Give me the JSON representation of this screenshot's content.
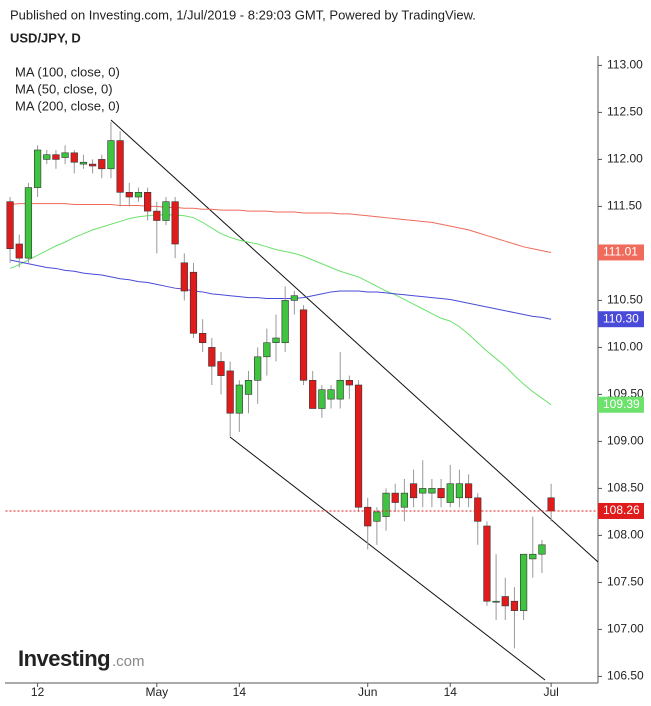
{
  "chart_data": {
    "type": "candlestick",
    "header": "Published on Investing.com, 1/Jul/2019 - 8:29:03 GMT, Powered by TradingView.",
    "title": "USD/JPY, D",
    "logo": {
      "brand": "Investing",
      "suffix": ".com"
    },
    "categories": [
      null,
      null,
      null,
      "12",
      null,
      null,
      null,
      null,
      null,
      null,
      null,
      null,
      null,
      null,
      null,
      null,
      "May",
      null,
      null,
      null,
      null,
      null,
      null,
      null,
      null,
      "14",
      null,
      null,
      null,
      null,
      null,
      null,
      null,
      null,
      null,
      null,
      null,
      null,
      null,
      "Jun",
      null,
      null,
      null,
      null,
      null,
      null,
      null,
      null,
      "14",
      null,
      null,
      null,
      null,
      null,
      null,
      null,
      null,
      null,
      null,
      "Jul"
    ],
    "open": [
      111.55,
      111.1,
      110.95,
      111.7,
      112.0,
      112.05,
      112.02,
      112.07,
      111.95,
      111.95,
      112.0,
      111.9,
      112.2,
      111.65,
      111.6,
      111.65,
      111.45,
      111.35,
      111.55,
      110.9,
      110.8,
      110.15,
      110.0,
      109.85,
      109.75,
      109.3,
      109.5,
      109.65,
      109.9,
      110.05,
      110.05,
      110.5,
      110.4,
      109.65,
      109.35,
      109.45,
      109.45,
      109.65,
      109.6,
      108.3,
      108.15,
      108.2,
      108.45,
      108.3,
      108.55,
      108.45,
      108.45,
      108.5,
      108.35,
      108.4,
      108.55,
      108.4,
      108.1,
      107.3,
      107.35,
      107.3,
      107.2,
      107.75,
      107.8,
      108.4
    ],
    "high": [
      111.6,
      111.2,
      111.75,
      112.15,
      112.1,
      112.1,
      112.15,
      112.1,
      112.05,
      112.0,
      112.05,
      112.4,
      112.3,
      111.75,
      111.7,
      111.7,
      111.55,
      111.6,
      111.6,
      111.0,
      110.9,
      110.3,
      110.1,
      109.95,
      109.85,
      109.65,
      109.75,
      110.0,
      110.2,
      110.35,
      110.65,
      110.6,
      110.45,
      109.75,
      109.6,
      109.6,
      109.95,
      109.7,
      109.65,
      108.4,
      108.3,
      108.5,
      108.55,
      108.6,
      108.7,
      108.8,
      108.6,
      108.6,
      108.75,
      108.7,
      108.65,
      108.45,
      108.15,
      107.8,
      107.55,
      107.45,
      107.8,
      108.2,
      107.95,
      108.55
    ],
    "low": [
      110.9,
      110.85,
      110.9,
      111.6,
      111.95,
      111.9,
      111.95,
      111.85,
      111.9,
      111.85,
      111.8,
      111.8,
      111.5,
      111.5,
      111.55,
      111.35,
      111.0,
      111.3,
      110.95,
      110.5,
      110.1,
      109.95,
      109.6,
      109.5,
      109.05,
      109.1,
      109.3,
      109.4,
      109.7,
      109.85,
      109.95,
      110.35,
      109.6,
      109.35,
      109.25,
      109.35,
      109.35,
      109.45,
      108.25,
      107.85,
      107.9,
      108.05,
      108.25,
      108.15,
      108.3,
      108.3,
      108.3,
      108.3,
      108.3,
      108.3,
      108.3,
      107.9,
      107.25,
      107.1,
      107.1,
      106.8,
      107.1,
      107.55,
      107.6,
      108.15
    ],
    "close": [
      111.05,
      110.95,
      111.7,
      112.1,
      112.05,
      112.0,
      112.07,
      111.97,
      111.97,
      111.93,
      111.9,
      112.2,
      111.65,
      111.6,
      111.65,
      111.45,
      111.35,
      111.55,
      111.1,
      110.6,
      110.15,
      110.05,
      109.8,
      109.7,
      109.3,
      109.6,
      109.65,
      109.9,
      110.05,
      110.1,
      110.5,
      110.55,
      109.65,
      109.35,
      109.55,
      109.55,
      109.65,
      109.6,
      108.3,
      108.1,
      108.25,
      108.45,
      108.35,
      108.45,
      108.4,
      108.5,
      108.5,
      108.4,
      108.55,
      108.55,
      108.4,
      108.15,
      107.3,
      107.3,
      107.25,
      107.2,
      107.8,
      107.8,
      107.9,
      108.26
    ],
    "up_color": "#3ec43e",
    "down_color": "#e01b1b",
    "series": [
      {
        "name": "MA (100, close, 0)",
        "color": "#f06b5c",
        "last_label": "111.01",
        "values": [
          111.52,
          111.53,
          111.53,
          111.53,
          111.53,
          111.53,
          111.53,
          111.52,
          111.52,
          111.52,
          111.52,
          111.52,
          111.51,
          111.51,
          111.51,
          111.5,
          111.5,
          111.49,
          111.49,
          111.48,
          111.48,
          111.47,
          111.47,
          111.46,
          111.46,
          111.46,
          111.45,
          111.45,
          111.45,
          111.44,
          111.44,
          111.44,
          111.43,
          111.43,
          111.43,
          111.43,
          111.42,
          111.42,
          111.41,
          111.4,
          111.39,
          111.38,
          111.37,
          111.36,
          111.35,
          111.34,
          111.33,
          111.31,
          111.29,
          111.27,
          111.25,
          111.22,
          111.19,
          111.16,
          111.13,
          111.1,
          111.07,
          111.05,
          111.03,
          111.01
        ]
      },
      {
        "name": "MA (50, close, 0)",
        "color": "#6ce26c",
        "last_label": "109.39",
        "values": [
          110.84,
          110.88,
          110.93,
          110.98,
          111.03,
          111.08,
          111.12,
          111.17,
          111.21,
          111.25,
          111.28,
          111.31,
          111.34,
          111.37,
          111.39,
          111.4,
          111.41,
          111.41,
          111.41,
          111.4,
          111.38,
          111.33,
          111.27,
          111.21,
          111.17,
          111.14,
          111.12,
          111.1,
          111.07,
          111.04,
          111.02,
          111.0,
          110.97,
          110.93,
          110.89,
          110.85,
          110.81,
          110.78,
          110.75,
          110.7,
          110.65,
          110.6,
          110.56,
          110.51,
          110.46,
          110.41,
          110.36,
          110.31,
          110.28,
          110.22,
          110.14,
          110.05,
          109.96,
          109.88,
          109.8,
          109.7,
          109.61,
          109.53,
          109.46,
          109.39
        ]
      },
      {
        "name": "MA (200, close, 0)",
        "color": "#4a4ad8",
        "last_label": "110.30",
        "values": [
          110.93,
          110.91,
          110.89,
          110.87,
          110.85,
          110.84,
          110.82,
          110.81,
          110.79,
          110.78,
          110.77,
          110.75,
          110.73,
          110.72,
          110.7,
          110.69,
          110.67,
          110.65,
          110.63,
          110.62,
          110.6,
          110.59,
          110.57,
          110.56,
          110.55,
          110.54,
          110.53,
          110.53,
          110.52,
          110.52,
          110.52,
          110.52,
          110.53,
          110.55,
          110.57,
          110.59,
          110.6,
          110.6,
          110.6,
          110.59,
          110.59,
          110.58,
          110.57,
          110.56,
          110.55,
          110.54,
          110.53,
          110.52,
          110.51,
          110.49,
          110.47,
          110.45,
          110.43,
          110.41,
          110.39,
          110.37,
          110.35,
          110.33,
          110.32,
          110.3
        ]
      }
    ],
    "last_price": {
      "value": 108.26,
      "label": "108.26",
      "color": "#e01b1b"
    },
    "ylim": [
      106.43,
      113.1
    ],
    "yticks": [
      {
        "value": 106.5,
        "label": "106.50"
      },
      {
        "value": 107,
        "label": "107.00"
      },
      {
        "value": 107.5,
        "label": "107.50"
      },
      {
        "value": 108,
        "label": "108.00"
      },
      {
        "value": 108.5,
        "label": "108.50"
      },
      {
        "value": 109,
        "label": "109.00"
      },
      {
        "value": 109.5,
        "label": "109.50"
      },
      {
        "value": 110,
        "label": "110.00"
      },
      {
        "value": 110.5,
        "label": "110.50"
      },
      {
        "value": 111,
        "label": "111.00"
      },
      {
        "value": 111.5,
        "label": "111.50"
      },
      {
        "value": 112,
        "label": "112.00"
      },
      {
        "value": 112.5,
        "label": "112.50"
      },
      {
        "value": 113,
        "label": "113.00"
      }
    ],
    "grid": false
  }
}
